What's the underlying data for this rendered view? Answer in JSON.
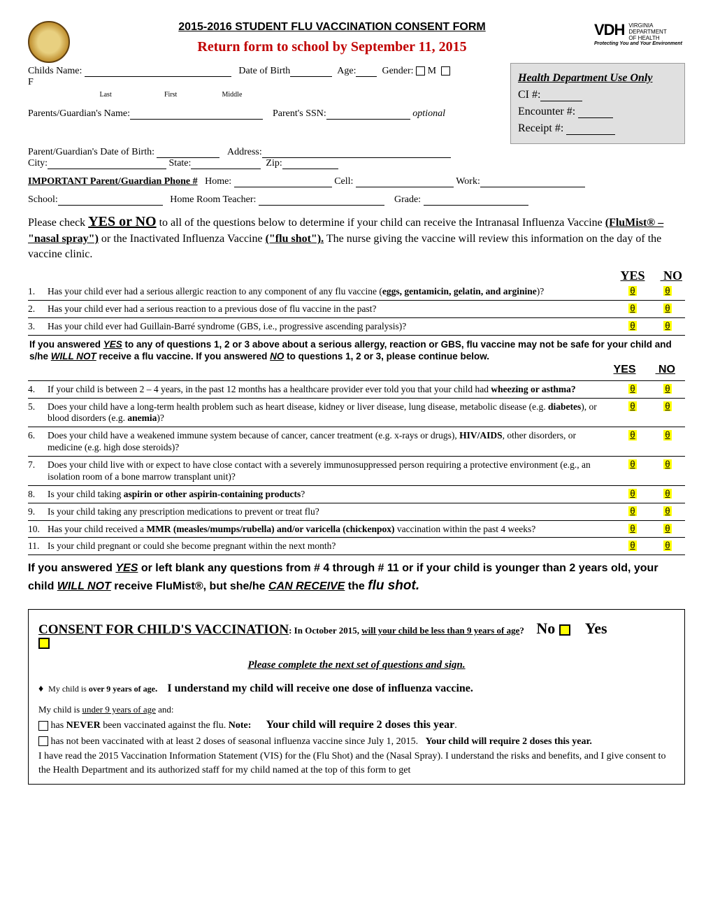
{
  "header": {
    "title": "2015-2016 STUDENT FLU VACCINATION CONSENT FORM",
    "return_line": "Return form to school by September 11, 2015",
    "logo_main": "VDH",
    "logo_l1": "VIRGINIA",
    "logo_l2": "DEPARTMENT",
    "logo_l3": "OF HEALTH",
    "logo_tag": "Protecting You and Your Environment"
  },
  "hd_box": {
    "title": "Health Department Use Only",
    "ci": "CI #:",
    "enc": "Encounter #:",
    "rec": "Receipt #:"
  },
  "fields": {
    "child_name": "Childs Name:",
    "dob": "Date of Birth",
    "age": "Age:",
    "gender": "Gender:",
    "gender_m": "M",
    "gender_f": "F",
    "last": "Last",
    "first": "First",
    "middle": "Middle",
    "parent_name": "Parents/Guardian's  Name:",
    "parent_ssn": "Parent's SSN:",
    "optional": "optional",
    "parent_dob": "Parent/Guardian's Date of Birth:",
    "address": "Address:",
    "city": "City:",
    "state": "State:",
    "zip": "Zip:",
    "phone_label": "IMPORTANT Parent/Guardian Phone #",
    "home": "Home:",
    "cell": "Cell:",
    "work": "Work:",
    "school": "School:",
    "teacher": "Home Room Teacher:",
    "grade": "Grade:"
  },
  "intro": {
    "p1a": "Please check ",
    "p1b": "YES or NO",
    "p1c": " to all of the questions below to determine if your child can receive the Intranasal Influenza Vaccine ",
    "p1d": "(FluMist® – \"nasal spray\")",
    "p1e": " or the Inactivated Influenza Vaccine ",
    "p1f": "(\"flu shot\").",
    "p1g": " The nurse giving the vaccine will review this information on the day of the vaccine clinic."
  },
  "yn": {
    "yes": "YES",
    "no": "NO",
    "mark": "θ"
  },
  "questions": [
    {
      "n": "1.",
      "html": "Has your child ever had a serious allergic reaction to any component of any flu vaccine (<b>eggs, gentamicin, gelatin, and arginine</b>)?"
    },
    {
      "n": "2.",
      "html": "Has your child ever had a serious reaction to a previous dose of flu vaccine in the past?"
    },
    {
      "n": "3.",
      "html": "Has your child ever had Guillain-Barré syndrome (GBS, i.e., progressive ascending paralysis)?"
    }
  ],
  "warn1": {
    "line1": "If you answered <u><i>YES</i></u> to any of questions 1, 2 or 3 above about a serious allergy, reaction or GBS, flu vaccine may not be safe for your child and s/he <u><i>WILL NOT</i></u> receive a flu vaccine. If you answered <u><i>NO</i></u> to questions 1, 2 or 3, please continue below."
  },
  "questions2": [
    {
      "n": "4.",
      "html": "If your child is between 2 – 4 years, in the past 12 months has a healthcare provider ever told you that your child had <b>wheezing or asthma?</b>"
    },
    {
      "n": "5.",
      "html": "Does your child have a long-term health problem such as heart disease, kidney or liver disease, lung disease, metabolic disease (e.g. <b>diabetes</b>), or blood disorders (e.g. <b>anemia</b>)?"
    },
    {
      "n": "6.",
      "html": "Does your child have a weakened immune system because of cancer, cancer treatment (e.g. x-rays or drugs), <b>HIV/AIDS</b>, other disorders, or medicine (e.g. high dose steroids)?"
    },
    {
      "n": "7.",
      "html": "Does your child live with or expect to have close contact with a severely immunosuppressed person requiring a protective environment (e.g., an isolation room of a bone marrow transplant unit)?"
    },
    {
      "n": "8.",
      "html": "Is your child taking <b>aspirin or other aspirin-containing products</b>?"
    },
    {
      "n": "9.",
      "html": "Is your child taking any prescription medications to prevent or treat flu?"
    },
    {
      "n": "10.",
      "html": "Has your child received a <b>MMR (measles/mumps/rubella) and/or varicella (chickenpox)</b> vaccination within the past 4 weeks?"
    },
    {
      "n": "11.",
      "html": "Is your child pregnant or could she become pregnant within the next month?"
    }
  ],
  "final_warn": "If you answered <span class='uli'>YES</span> or left blank any questions from # 4 through # 11 or if your child is younger than 2 years old, your child <span class='uli'>WILL NOT</span> receive FluMist®, but she/he <span class='uli'>CAN RECEIVE</span> the <span class='flu'>flu shot.</span>",
  "consent": {
    "title": "CONSENT FOR CHILD'S VACCINATION",
    "q": ": In October 2015, <span class='u'>will your child be less than 9 years of age</span>?",
    "no": "No",
    "yes": "Yes",
    "complete": "Please complete the next set of questions and sign.",
    "over9_a": "My child is ",
    "over9_b": "over 9 years of age",
    "over9_c": "I understand my child will receive one dose of influenza vaccine.",
    "under9": "My child is <u>under 9 years of age</u> and:",
    "never_a": "has ",
    "never_b": "NEVER",
    "never_c": " been vaccinated against the flu.  ",
    "note": "Note:",
    "never_d": "Your child will require 2 doses this year",
    "notvacc": "has not been vaccinated with at least 2 doses of seasonal influenza vaccine since July 1, 2015.",
    "notvacc_b": "Your child will require 2 doses this year.",
    "vis": "I have read the 2015 Vaccination Information Statement (VIS) for the  (Flu Shot) and the (Nasal Spray).  I understand the risks and benefits, and I give consent to the Health Department and its authorized staff for my child named at the top of this form to get"
  }
}
